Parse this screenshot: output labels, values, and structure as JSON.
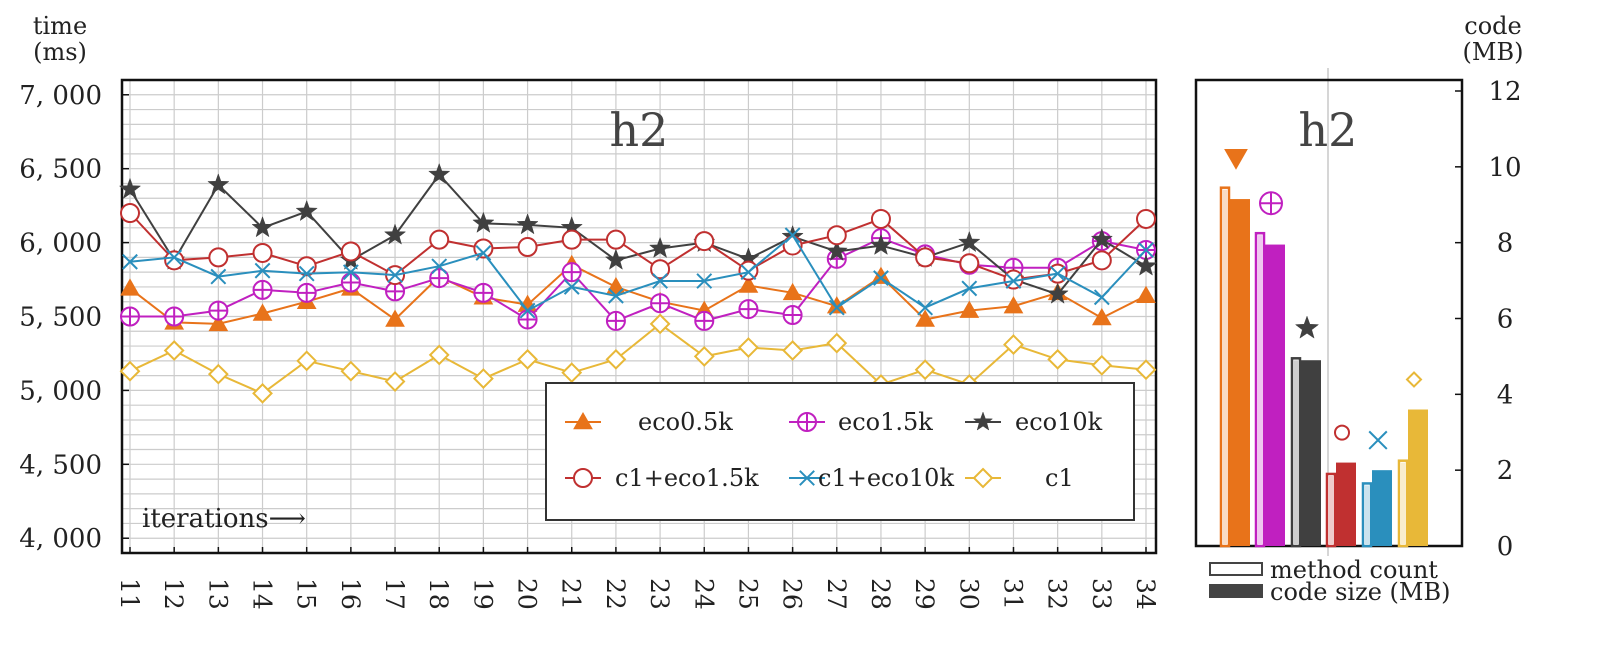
{
  "chart_data": [
    {
      "type": "line",
      "title": "h2",
      "ylabel": "time\n(ms)",
      "xlabel": "iterations⟶",
      "ylim": [
        3900,
        7100
      ],
      "yticks": [
        4000,
        4500,
        5000,
        5500,
        6000,
        6500,
        7000
      ],
      "ytick_labels": [
        "4, 000",
        "4, 500",
        "5, 000",
        "5, 500",
        "6, 000",
        "6, 500",
        "7, 000"
      ],
      "grid": true,
      "legend_position": "bottom-right",
      "x": [
        11,
        12,
        13,
        14,
        15,
        16,
        17,
        18,
        19,
        20,
        21,
        22,
        23,
        24,
        25,
        26,
        27,
        28,
        29,
        30,
        31,
        32,
        33,
        34
      ],
      "series": [
        {
          "name": "eco0.5k",
          "color": "#e8731a",
          "marker": "triangle",
          "values": [
            5690,
            5460,
            5450,
            5520,
            5600,
            5690,
            5480,
            5770,
            5630,
            5580,
            5850,
            5700,
            5600,
            5540,
            5710,
            5660,
            5570,
            5770,
            5480,
            5540,
            5570,
            5660,
            5490,
            5640
          ]
        },
        {
          "name": "eco1.5k",
          "color": "#c020c0",
          "marker": "circle-plus",
          "values": [
            5500,
            5500,
            5540,
            5680,
            5660,
            5730,
            5670,
            5760,
            5660,
            5480,
            5800,
            5470,
            5590,
            5470,
            5550,
            5510,
            5890,
            6030,
            5920,
            5850,
            5830,
            5830,
            6010,
            5950
          ]
        },
        {
          "name": "eco10k",
          "color": "#404040",
          "marker": "star",
          "values": [
            6360,
            5880,
            6390,
            6100,
            6210,
            5880,
            6050,
            6460,
            6130,
            6120,
            6100,
            5880,
            5960,
            6000,
            5890,
            6040,
            5940,
            5980,
            5900,
            6000,
            5750,
            5650,
            6020,
            5840
          ]
        },
        {
          "name": "c1+eco1.5k",
          "color": "#c03030",
          "marker": "circle",
          "values": [
            6200,
            5880,
            5900,
            5930,
            5840,
            5940,
            5780,
            6020,
            5960,
            5970,
            6020,
            6020,
            5820,
            6010,
            5810,
            5980,
            6050,
            6160,
            5900,
            5860,
            5750,
            5790,
            5880,
            6160
          ]
        },
        {
          "name": "c1+eco10k",
          "color": "#2a8fbd",
          "marker": "x",
          "values": [
            5870,
            5900,
            5770,
            5810,
            5790,
            5800,
            5780,
            5840,
            5930,
            5540,
            5700,
            5640,
            5740,
            5740,
            5800,
            6050,
            5560,
            5760,
            5560,
            5690,
            5740,
            5790,
            5630,
            5950
          ]
        },
        {
          "name": "c1",
          "color": "#e8b838",
          "marker": "diamond",
          "values": [
            5130,
            5270,
            5110,
            4980,
            5200,
            5130,
            5060,
            5240,
            5080,
            5210,
            5120,
            5210,
            5450,
            5230,
            5290,
            5270,
            5320,
            5040,
            5140,
            5040,
            5310,
            5210,
            5170,
            5140
          ]
        }
      ]
    },
    {
      "type": "bar",
      "title": "h2",
      "ylabel": "code\n(MB)",
      "ylim": [
        0,
        12
      ],
      "yticks": [
        0,
        2,
        4,
        6,
        8,
        10,
        12
      ],
      "ytick_labels": [
        "0",
        "2",
        "4",
        "6",
        "8",
        "10",
        "12"
      ],
      "categories": [
        "eco0.5k",
        "eco1.5k",
        "eco10k",
        "c1+eco1.5k",
        "c1+eco10k",
        "c1"
      ],
      "colors": [
        "#e8731a",
        "#c020c0",
        "#404040",
        "#c03030",
        "#2a8fbd",
        "#e8b838"
      ],
      "markers": [
        "triangle-down",
        "circle-plus",
        "star",
        "circle",
        "x",
        "diamond"
      ],
      "series": [
        {
          "name": "method count",
          "values": [
            9.45,
            8.25,
            4.95,
            1.9,
            1.65,
            2.25
          ]
        },
        {
          "name": "code size (MB)",
          "values": [
            9.15,
            7.95,
            4.9,
            2.2,
            2.0,
            3.6
          ]
        }
      ],
      "legend": [
        "method count",
        "code size (MB)"
      ],
      "legend_position": "bottom"
    }
  ]
}
